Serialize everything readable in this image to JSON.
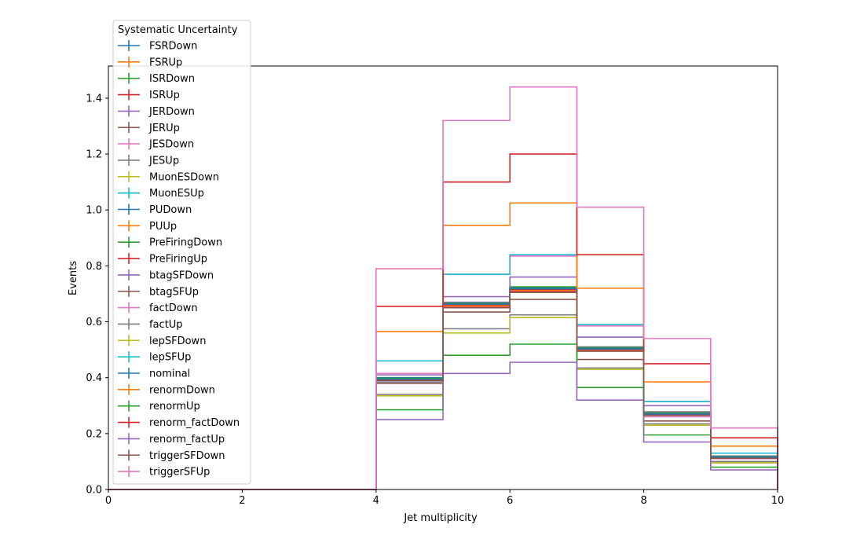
{
  "chart_data": {
    "type": "line",
    "style": "step-histogram",
    "xlabel": "Jet multiplicity",
    "ylabel": "Events",
    "xlim": [
      0,
      10
    ],
    "ylim": [
      0,
      1.515
    ],
    "x_ticks": [
      0,
      2,
      4,
      6,
      8,
      10
    ],
    "y_ticks": [
      0.0,
      0.2,
      0.4,
      0.6,
      0.8,
      1.0,
      1.2,
      1.4
    ],
    "x_tick_labels": [
      "0",
      "2",
      "4",
      "6",
      "8",
      "10"
    ],
    "y_tick_labels": [
      "0.0",
      "0.2",
      "0.4",
      "0.6",
      "0.8",
      "1.0",
      "1.2",
      "1.4"
    ],
    "bin_edges": [
      0,
      1,
      2,
      3,
      4,
      5,
      6,
      7,
      8,
      9,
      10
    ],
    "grid": false,
    "legend": {
      "title": "Systematic Uncertainty",
      "placement": "upper-left, outside top"
    },
    "series": [
      {
        "name": "FSRDown",
        "color": "#1f77b4",
        "values": [
          0,
          0,
          0,
          0,
          0.395,
          0.665,
          0.72,
          0.505,
          0.27,
          0.115
        ]
      },
      {
        "name": "FSRUp",
        "color": "#ff7f0e",
        "values": [
          0,
          0,
          0,
          0,
          0.395,
          0.66,
          0.715,
          0.5,
          0.27,
          0.115
        ]
      },
      {
        "name": "ISRDown",
        "color": "#2ca02c",
        "values": [
          0,
          0,
          0,
          0,
          0.4,
          0.67,
          0.725,
          0.51,
          0.275,
          0.118
        ]
      },
      {
        "name": "ISRUp",
        "color": "#d62728",
        "values": [
          0,
          0,
          0,
          0,
          0.39,
          0.655,
          0.71,
          0.498,
          0.268,
          0.113
        ]
      },
      {
        "name": "JERDown",
        "color": "#9467bd",
        "values": [
          0,
          0,
          0,
          0,
          0.398,
          0.668,
          0.722,
          0.506,
          0.272,
          0.116
        ]
      },
      {
        "name": "JERUp",
        "color": "#8c564b",
        "values": [
          0,
          0,
          0,
          0,
          0.392,
          0.66,
          0.715,
          0.5,
          0.268,
          0.114
        ]
      },
      {
        "name": "JESDown",
        "color": "#e377c2",
        "values": [
          0,
          0,
          0,
          0,
          0.415,
          0.67,
          0.715,
          0.495,
          0.26,
          0.11
        ]
      },
      {
        "name": "JESUp",
        "color": "#7f7f7f",
        "values": [
          0,
          0,
          0,
          0,
          0.385,
          0.66,
          0.72,
          0.51,
          0.278,
          0.12
        ]
      },
      {
        "name": "MuonESDown",
        "color": "#bcbd22",
        "values": [
          0,
          0,
          0,
          0,
          0.395,
          0.662,
          0.717,
          0.502,
          0.27,
          0.115
        ]
      },
      {
        "name": "MuonESUp",
        "color": "#17becf",
        "values": [
          0,
          0,
          0,
          0,
          0.396,
          0.664,
          0.719,
          0.504,
          0.271,
          0.116
        ]
      },
      {
        "name": "PUDown",
        "color": "#1f77b4",
        "values": [
          0,
          0,
          0,
          0,
          0.4,
          0.668,
          0.722,
          0.507,
          0.273,
          0.117
        ]
      },
      {
        "name": "PUUp",
        "color": "#ff7f0e",
        "values": [
          0,
          0,
          0,
          0,
          0.39,
          0.658,
          0.713,
          0.499,
          0.268,
          0.114
        ]
      },
      {
        "name": "PreFiringDown",
        "color": "#2ca02c",
        "values": [
          0,
          0,
          0,
          0,
          0.398,
          0.666,
          0.72,
          0.505,
          0.272,
          0.116
        ]
      },
      {
        "name": "PreFiringUp",
        "color": "#d62728",
        "values": [
          0,
          0,
          0,
          0,
          0.393,
          0.661,
          0.716,
          0.501,
          0.269,
          0.114
        ]
      },
      {
        "name": "btagSFDown",
        "color": "#9467bd",
        "values": [
          0,
          0,
          0,
          0,
          0.41,
          0.69,
          0.76,
          0.545,
          0.3,
          0.13
        ]
      },
      {
        "name": "btagSFUp",
        "color": "#8c564b",
        "values": [
          0,
          0,
          0,
          0,
          0.38,
          0.635,
          0.68,
          0.465,
          0.245,
          0.1
        ]
      },
      {
        "name": "factDown",
        "color": "#e377c2",
        "values": [
          0,
          0,
          0,
          0,
          0.46,
          0.77,
          0.835,
          0.585,
          0.315,
          0.13
        ]
      },
      {
        "name": "factUp",
        "color": "#7f7f7f",
        "values": [
          0,
          0,
          0,
          0,
          0.34,
          0.575,
          0.625,
          0.435,
          0.235,
          0.1
        ]
      },
      {
        "name": "lepSFDown",
        "color": "#bcbd22",
        "values": [
          0,
          0,
          0,
          0,
          0.335,
          0.56,
          0.615,
          0.43,
          0.23,
          0.095
        ]
      },
      {
        "name": "lepSFUp",
        "color": "#17becf",
        "values": [
          0,
          0,
          0,
          0,
          0.46,
          0.77,
          0.84,
          0.59,
          0.315,
          0.13
        ]
      },
      {
        "name": "nominal",
        "color": "#1f77b4",
        "values": [
          0,
          0,
          0,
          0,
          0.395,
          0.663,
          0.718,
          0.503,
          0.27,
          0.115
        ]
      },
      {
        "name": "renormDown",
        "color": "#ff7f0e",
        "values": [
          0,
          0,
          0,
          0,
          0.565,
          0.945,
          1.025,
          0.72,
          0.385,
          0.155
        ]
      },
      {
        "name": "renormUp",
        "color": "#2ca02c",
        "values": [
          0,
          0,
          0,
          0,
          0.285,
          0.48,
          0.52,
          0.365,
          0.195,
          0.08
        ]
      },
      {
        "name": "renorm_factDown",
        "color": "#d62728",
        "values": [
          0,
          0,
          0,
          0,
          0.655,
          1.1,
          1.2,
          0.84,
          0.45,
          0.185
        ]
      },
      {
        "name": "renorm_factUp",
        "color": "#9467bd",
        "values": [
          0,
          0,
          0,
          0,
          0.25,
          0.415,
          0.455,
          0.32,
          0.17,
          0.07
        ]
      },
      {
        "name": "triggerSFDown",
        "color": "#8c564b",
        "values": [
          0,
          0,
          0,
          0,
          0.39,
          0.65,
          0.705,
          0.495,
          0.265,
          0.112
        ]
      },
      {
        "name": "triggerSFUp",
        "color": "#e377c2",
        "values": [
          0,
          0,
          0,
          0,
          0.79,
          1.32,
          1.44,
          1.01,
          0.54,
          0.22
        ]
      }
    ]
  }
}
